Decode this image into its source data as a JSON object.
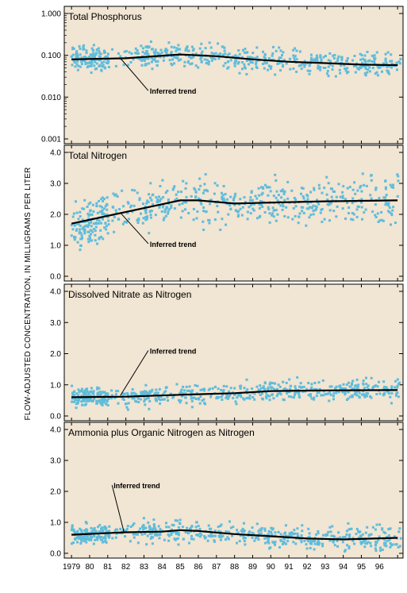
{
  "figure": {
    "ylabel": "FLOW-ADJUSTED CONCENTRATION, IN MILLIGRAMS PER LITER",
    "x_tick_labels": [
      "1979",
      "80",
      "81",
      "82",
      "83",
      "84",
      "85",
      "86",
      "87",
      "88",
      "89",
      "90",
      "91",
      "92",
      "93",
      "94",
      "95",
      "96"
    ],
    "annotation": "Inferred trend",
    "colors": {
      "background": "#f1e5d3",
      "points": "#5fbcdb",
      "trend": "#000000",
      "frame": "#000000"
    }
  },
  "chart_data": [
    {
      "type": "scatter",
      "title": "Total Phosphorus",
      "y_scale": "log",
      "ylim": [
        0.001,
        1.0
      ],
      "y_ticks": [
        0.001,
        0.01,
        0.1,
        1.0
      ],
      "y_tick_labels": [
        "0.001",
        "0.010",
        "0.100",
        "1.000"
      ],
      "xlim": [
        1978.6,
        1997.3
      ],
      "trend": {
        "x": [
          1979.0,
          1982.0,
          1985.0,
          1987.0,
          1989.0,
          1991.0,
          1993.0,
          1995.0,
          1997.0
        ],
        "y": [
          0.08,
          0.085,
          0.105,
          0.095,
          0.08,
          0.07,
          0.065,
          0.06,
          0.058
        ]
      },
      "scatter": {
        "center": 0.085,
        "log_spread": 0.2,
        "min": 0.005,
        "max": 0.8
      },
      "annotation": {
        "text_x": 1983.5,
        "text_y": 0.012,
        "arrow_x": 1981.7,
        "arrow_y": 0.085
      }
    },
    {
      "type": "scatter",
      "title": "Total Nitrogen",
      "y_scale": "linear",
      "ylim": [
        0.0,
        4.0
      ],
      "y_ticks": [
        0,
        1,
        2,
        3,
        4
      ],
      "y_tick_labels": [
        "0.0",
        "1.0",
        "2.0",
        "3.0",
        "4.0"
      ],
      "xlim": [
        1978.6,
        1997.3
      ],
      "trend": {
        "x": [
          1979.0,
          1985.0,
          1986.0,
          1988.0,
          1990.0,
          1993.0,
          1997.0
        ],
        "y": [
          1.7,
          2.45,
          2.45,
          2.35,
          2.38,
          2.42,
          2.45
        ]
      },
      "scatter": {
        "spread": 0.5,
        "min": 0.15,
        "max": 3.9
      },
      "annotation": {
        "text_x": 1983.5,
        "text_y": 0.95,
        "arrow_x": 1981.7,
        "arrow_y": 2.05
      }
    },
    {
      "type": "scatter",
      "title": "Dissolved Nitrate as Nitrogen",
      "y_scale": "linear",
      "ylim": [
        0.0,
        4.0
      ],
      "y_ticks": [
        0,
        1,
        2,
        3,
        4
      ],
      "y_tick_labels": [
        "0.0",
        "1.0",
        "2.0",
        "3.0",
        "4.0"
      ],
      "xlim": [
        1978.6,
        1997.3
      ],
      "trend": {
        "x": [
          1979.0,
          1982.0,
          1985.0,
          1988.0,
          1990.0,
          1993.0,
          1997.0
        ],
        "y": [
          0.6,
          0.62,
          0.68,
          0.73,
          0.8,
          0.82,
          0.83
        ]
      },
      "scatter": {
        "spread": 0.22,
        "min": 0.05,
        "max": 3.05
      },
      "annotation": {
        "text_x": 1983.5,
        "text_y": 2.0,
        "arrow_x": 1981.7,
        "arrow_y": 0.66
      }
    },
    {
      "type": "scatter",
      "title": "Ammonia plus Organic Nitrogen as Nitrogen",
      "y_scale": "linear",
      "ylim": [
        0.0,
        4.0
      ],
      "y_ticks": [
        0,
        1,
        2,
        3,
        4
      ],
      "y_tick_labels": [
        "0.0",
        "1.0",
        "2.0",
        "3.0",
        "4.0"
      ],
      "xlim": [
        1978.6,
        1997.3
      ],
      "trend": {
        "x": [
          1979.0,
          1982.0,
          1984.0,
          1985.0,
          1986.0,
          1988.0,
          1990.0,
          1992.0,
          1994.0,
          1997.0
        ],
        "y": [
          0.6,
          0.68,
          0.7,
          0.75,
          0.72,
          0.62,
          0.55,
          0.48,
          0.45,
          0.5
        ]
      },
      "scatter": {
        "spread": 0.25,
        "min": 0.05,
        "max": 3.4
      },
      "annotation": {
        "text_x": 1981.5,
        "text_y": 2.1,
        "arrow_x": 1981.9,
        "arrow_y": 0.68
      }
    }
  ]
}
